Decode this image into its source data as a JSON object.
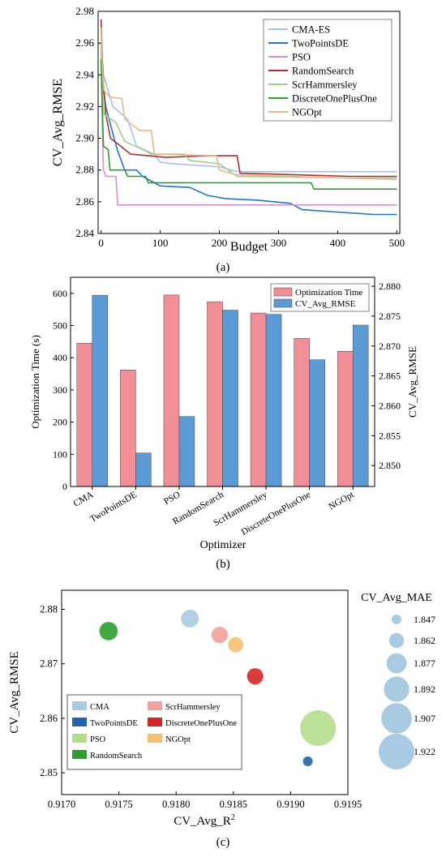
{
  "chart_data": [
    {
      "panel_label": "(a)",
      "type": "line",
      "xlabel": "Budget",
      "ylabel": "CV_Avg_RMSE",
      "xlim": [
        -5,
        505
      ],
      "ylim": [
        2.84,
        2.98
      ],
      "xticks": [
        "0",
        "100",
        "200",
        "300",
        "400",
        "500"
      ],
      "yticks": [
        "2.84",
        "2.86",
        "2.88",
        "2.90",
        "2.92",
        "2.94",
        "2.96",
        "2.98"
      ],
      "legend_position": "top-right",
      "series": [
        {
          "name": "CMA-ES",
          "color": "#9fc5e8",
          "points": [
            [
              0,
              2.975
            ],
            [
              2,
              2.95
            ],
            [
              4,
              2.94
            ],
            [
              8,
              2.935
            ],
            [
              12,
              2.93
            ],
            [
              20,
              2.92
            ],
            [
              45,
              2.912
            ],
            [
              60,
              2.895
            ],
            [
              90,
              2.89
            ],
            [
              100,
              2.885
            ],
            [
              120,
              2.884
            ],
            [
              200,
              2.882
            ],
            [
              230,
              2.879
            ],
            [
              380,
              2.879
            ],
            [
              500,
              2.879
            ]
          ]
        },
        {
          "name": "TwoPointsDE",
          "color": "#1f77d0",
          "points": [
            [
              0,
              2.955
            ],
            [
              4,
              2.93
            ],
            [
              8,
              2.92
            ],
            [
              15,
              2.91
            ],
            [
              22,
              2.9
            ],
            [
              28,
              2.892
            ],
            [
              40,
              2.88
            ],
            [
              60,
              2.88
            ],
            [
              70,
              2.876
            ],
            [
              100,
              2.87
            ],
            [
              150,
              2.869
            ],
            [
              180,
              2.864
            ],
            [
              210,
              2.862
            ],
            [
              265,
              2.861
            ],
            [
              320,
              2.859
            ],
            [
              340,
              2.855
            ],
            [
              460,
              2.852
            ],
            [
              500,
              2.852
            ]
          ]
        },
        {
          "name": "PSO",
          "color": "#d98fc7",
          "points": [
            [
              0,
              2.96
            ],
            [
              2,
              2.91
            ],
            [
              4,
              2.88
            ],
            [
              8,
              2.876
            ],
            [
              25,
              2.876
            ],
            [
              28,
              2.858
            ],
            [
              500,
              2.858
            ]
          ]
        },
        {
          "name": "RandomSearch",
          "color": "#a83232",
          "points": [
            [
              0,
              2.975
            ],
            [
              2,
              2.95
            ],
            [
              4,
              2.935
            ],
            [
              8,
              2.915
            ],
            [
              16,
              2.9
            ],
            [
              30,
              2.896
            ],
            [
              50,
              2.89
            ],
            [
              110,
              2.888
            ],
            [
              180,
              2.889
            ],
            [
              230,
              2.889
            ],
            [
              235,
              2.878
            ],
            [
              420,
              2.876
            ],
            [
              500,
              2.876
            ]
          ]
        },
        {
          "name": "ScrHammersley",
          "color": "#9fd08a",
          "points": [
            [
              0,
              2.96
            ],
            [
              2,
              2.93
            ],
            [
              5,
              2.915
            ],
            [
              25,
              2.91
            ],
            [
              40,
              2.898
            ],
            [
              70,
              2.893
            ],
            [
              85,
              2.89
            ],
            [
              140,
              2.89
            ],
            [
              150,
              2.886
            ],
            [
              200,
              2.884
            ],
            [
              230,
              2.876
            ],
            [
              420,
              2.875
            ],
            [
              500,
              2.875
            ]
          ]
        },
        {
          "name": "DiscreteOnePlusOne",
          "color": "#2ca02c",
          "points": [
            [
              0,
              2.95
            ],
            [
              2,
              2.92
            ],
            [
              4,
              2.895
            ],
            [
              12,
              2.893
            ],
            [
              15,
              2.88
            ],
            [
              40,
              2.88
            ],
            [
              45,
              2.876
            ],
            [
              75,
              2.876
            ],
            [
              80,
              2.872
            ],
            [
              355,
              2.872
            ],
            [
              360,
              2.868
            ],
            [
              500,
              2.868
            ]
          ]
        },
        {
          "name": "NGOpt",
          "color": "#e8b88a",
          "points": [
            [
              0,
              2.97
            ],
            [
              2,
              2.945
            ],
            [
              5,
              2.93
            ],
            [
              15,
              2.926
            ],
            [
              35,
              2.925
            ],
            [
              40,
              2.912
            ],
            [
              65,
              2.905
            ],
            [
              85,
              2.905
            ],
            [
              90,
              2.89
            ],
            [
              195,
              2.889
            ],
            [
              200,
              2.88
            ],
            [
              230,
              2.877
            ],
            [
              500,
              2.874
            ]
          ]
        }
      ]
    },
    {
      "panel_label": "(b)",
      "type": "bar",
      "xlabel": "Optimizer",
      "ylabel_left": "Optimization Time (s)",
      "ylabel_right": "CV_Avg_RMSE",
      "ylim_left": [
        0,
        650
      ],
      "ylim_right": [
        2.8465,
        2.8815
      ],
      "yticks_left": [
        "0",
        "100",
        "200",
        "300",
        "400",
        "500",
        "600"
      ],
      "yticks_right": [
        "2.850",
        "2.855",
        "2.860",
        "2.865",
        "2.870",
        "2.875",
        "2.880"
      ],
      "categories": [
        "CMA",
        "TwoPointsDE",
        "PSO",
        "RandomSearch",
        "ScrHammersley",
        "DiscreteOnePlusOne",
        "NGOpt"
      ],
      "legend_position": "top-right",
      "series": [
        {
          "name": "Optimization Time",
          "color": "#f28e96",
          "axis": "left",
          "values": [
            445,
            362,
            595,
            574,
            539,
            460,
            420
          ]
        },
        {
          "name": "CV_Avg_RMSE",
          "color": "#5b9bd5",
          "axis": "right",
          "values": [
            2.8785,
            2.8521,
            2.8582,
            2.876,
            2.8753,
            2.8677,
            2.8735
          ]
        }
      ]
    },
    {
      "panel_label": "(c)",
      "type": "scatter",
      "xlabel": "CV_Avg_R",
      "xlabel_sup": "2",
      "ylabel": "CV_Avg_RMSE",
      "xlim": [
        0.917,
        0.9195
      ],
      "ylim": [
        2.846,
        2.8835
      ],
      "xticks": [
        "0.9170",
        "0.9175",
        "0.9180",
        "0.9185",
        "0.9190",
        "0.9195"
      ],
      "yticks": [
        "2.85",
        "2.86",
        "2.87",
        "2.88"
      ],
      "legend_position": "bottom-left",
      "size_legend": {
        "title": "CV_Avg_MAE",
        "values": [
          "1.847",
          "1.862",
          "1.877",
          "1.892",
          "1.907",
          "1.922"
        ],
        "color": "#a8cbe3"
      },
      "points": [
        {
          "name": "CMA",
          "color": "#a8cbe3",
          "x": 0.91812,
          "y": 2.8783,
          "mae": 1.87
        },
        {
          "name": "TwoPointsDE",
          "color": "#2166ac",
          "x": 0.91915,
          "y": 2.8521,
          "mae": 1.847
        },
        {
          "name": "PSO",
          "color": "#b3de8c",
          "x": 0.91924,
          "y": 2.8582,
          "mae": 1.922
        },
        {
          "name": "RandomSearch",
          "color": "#2ca02c",
          "x": 0.91741,
          "y": 2.876,
          "mae": 1.872
        },
        {
          "name": "ScrHammersley",
          "color": "#f2a19a",
          "x": 0.91838,
          "y": 2.8753,
          "mae": 1.866
        },
        {
          "name": "DiscreteOnePlusOne",
          "color": "#d62728",
          "x": 0.91869,
          "y": 2.8677,
          "mae": 1.866
        },
        {
          "name": "NGOpt",
          "color": "#f5c06f",
          "x": 0.91852,
          "y": 2.8735,
          "mae": 1.863
        }
      ],
      "legend_order": [
        "CMA",
        "ScrHammersley",
        "TwoPointsDE",
        "DiscreteOnePlusOne",
        "PSO",
        "NGOpt",
        "RandomSearch"
      ]
    }
  ]
}
